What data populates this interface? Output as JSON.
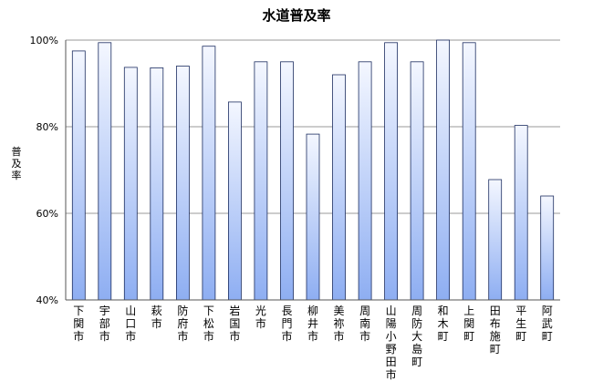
{
  "chart_data": {
    "type": "bar",
    "title": "水道普及率",
    "ylabel": "普及率",
    "xlabel": "",
    "ylim": [
      40,
      100
    ],
    "yticks": [
      "40%",
      "60%",
      "80%",
      "100%"
    ],
    "grid": true,
    "legend": "none",
    "categories": [
      "下関市",
      "宇部市",
      "山口市",
      "萩市",
      "防府市",
      "下松市",
      "岩国市",
      "光市",
      "長門市",
      "柳井市",
      "美祢市",
      "周南市",
      "山陽小野田市",
      "周防大島町",
      "和木町",
      "上関町",
      "田布施町",
      "平生町",
      "阿武町"
    ],
    "values": [
      97.5,
      99.4,
      93.7,
      93.6,
      94.0,
      98.6,
      85.7,
      95.0,
      95.0,
      78.3,
      92.0,
      95.0,
      99.4,
      95.0,
      100.0,
      99.4,
      67.8,
      80.3,
      64.0
    ],
    "colors": {
      "bar_top": "#f4f7ff",
      "bar_bottom": "#8eaef2",
      "bar_stroke": "#1c2d60",
      "grid": "#9a9a9a"
    }
  }
}
